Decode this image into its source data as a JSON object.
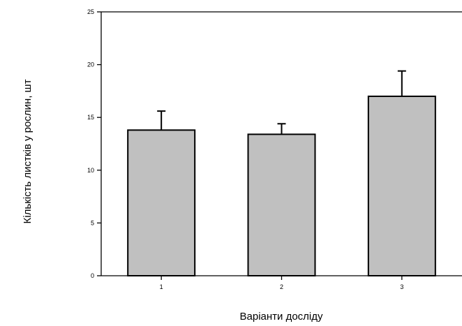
{
  "chart_data": {
    "type": "bar",
    "title": "",
    "xlabel": "Варіанти досліду",
    "ylabel": "Кількість листків у рослин, шт",
    "categories": [
      "1",
      "2",
      "3"
    ],
    "series": [
      {
        "values": [
          13.8,
          13.4,
          17.0
        ],
        "errors": [
          1.8,
          1.0,
          2.4
        ]
      }
    ],
    "ylim": [
      0,
      25
    ],
    "yticks": [
      0,
      5,
      10,
      15,
      20,
      25
    ],
    "ytick_labels": [
      "0",
      "5",
      "10",
      "15",
      "20",
      "25"
    ],
    "grid": false,
    "legend": "none",
    "colors": {
      "bar_fill": "#c0c0c0",
      "bar_stroke": "#000000",
      "axis": "#000000"
    }
  }
}
